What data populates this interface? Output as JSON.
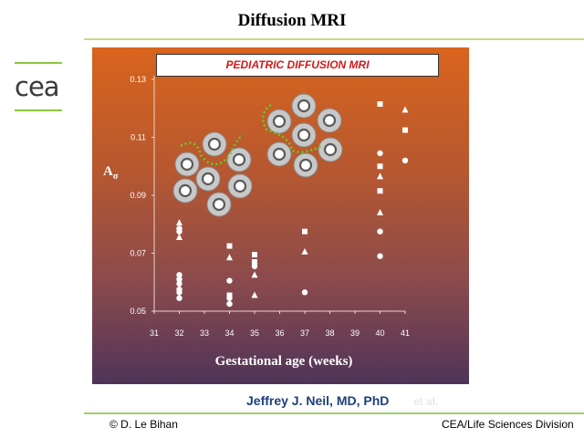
{
  "slide": {
    "title": "Diffusion MRI",
    "logo_text": "cea",
    "caption": "PEDIATRIC DIFFUSION MRI",
    "author": "Jeffrey J. Neil, MD, PhD",
    "author_faint": "et al.",
    "footer_left": "© D. Le Bihan",
    "footer_right": "CEA/Life Sciences Division"
  },
  "colors": {
    "accent_green": "#8dc63f",
    "caption_red": "#d11a1a",
    "author_blue": "#1f3f7a",
    "marker_white": "#ffffff",
    "cell_fill": "#c8c8c8",
    "cell_ring": "#8a8a8a",
    "dotted_green": "#5fd12a"
  },
  "chart_data": {
    "type": "scatter",
    "title": "",
    "xlabel": "Gestational age (weeks)",
    "ylabel": "Aσ",
    "xlim": [
      31,
      41
    ],
    "ylim": [
      0.05,
      0.13
    ],
    "x_ticks": [
      31,
      32,
      33,
      34,
      35,
      36,
      37,
      38,
      39,
      40,
      41
    ],
    "y_ticks": [
      "0.05",
      "0.07",
      "0.09",
      "0.11",
      "0.13"
    ],
    "grid": false,
    "legend": false,
    "series": [
      {
        "marker": "circle",
        "x": [
          32,
          32,
          32,
          32,
          32,
          32,
          32,
          32,
          34,
          34,
          34,
          35,
          37,
          40,
          40,
          40,
          41
        ],
        "y": [
          0.0785,
          0.0775,
          0.0625,
          0.061,
          0.0595,
          0.0575,
          0.0565,
          0.0545,
          0.0605,
          0.0525,
          0.0545,
          0.0655,
          0.0565,
          0.1045,
          0.0775,
          0.069,
          0.102
        ]
      },
      {
        "marker": "square",
        "x": [
          34,
          34,
          35,
          35,
          37,
          40,
          40,
          40,
          41
        ],
        "y": [
          0.0725,
          0.0555,
          0.0695,
          0.067,
          0.0775,
          0.1215,
          0.1,
          0.0915,
          0.1125
        ]
      },
      {
        "marker": "triangle",
        "x": [
          32,
          32,
          34,
          35,
          35,
          37,
          40,
          40,
          41
        ],
        "y": [
          0.0805,
          0.0755,
          0.0685,
          0.0625,
          0.0555,
          0.0705,
          0.0965,
          0.084,
          0.1195
        ]
      }
    ]
  }
}
